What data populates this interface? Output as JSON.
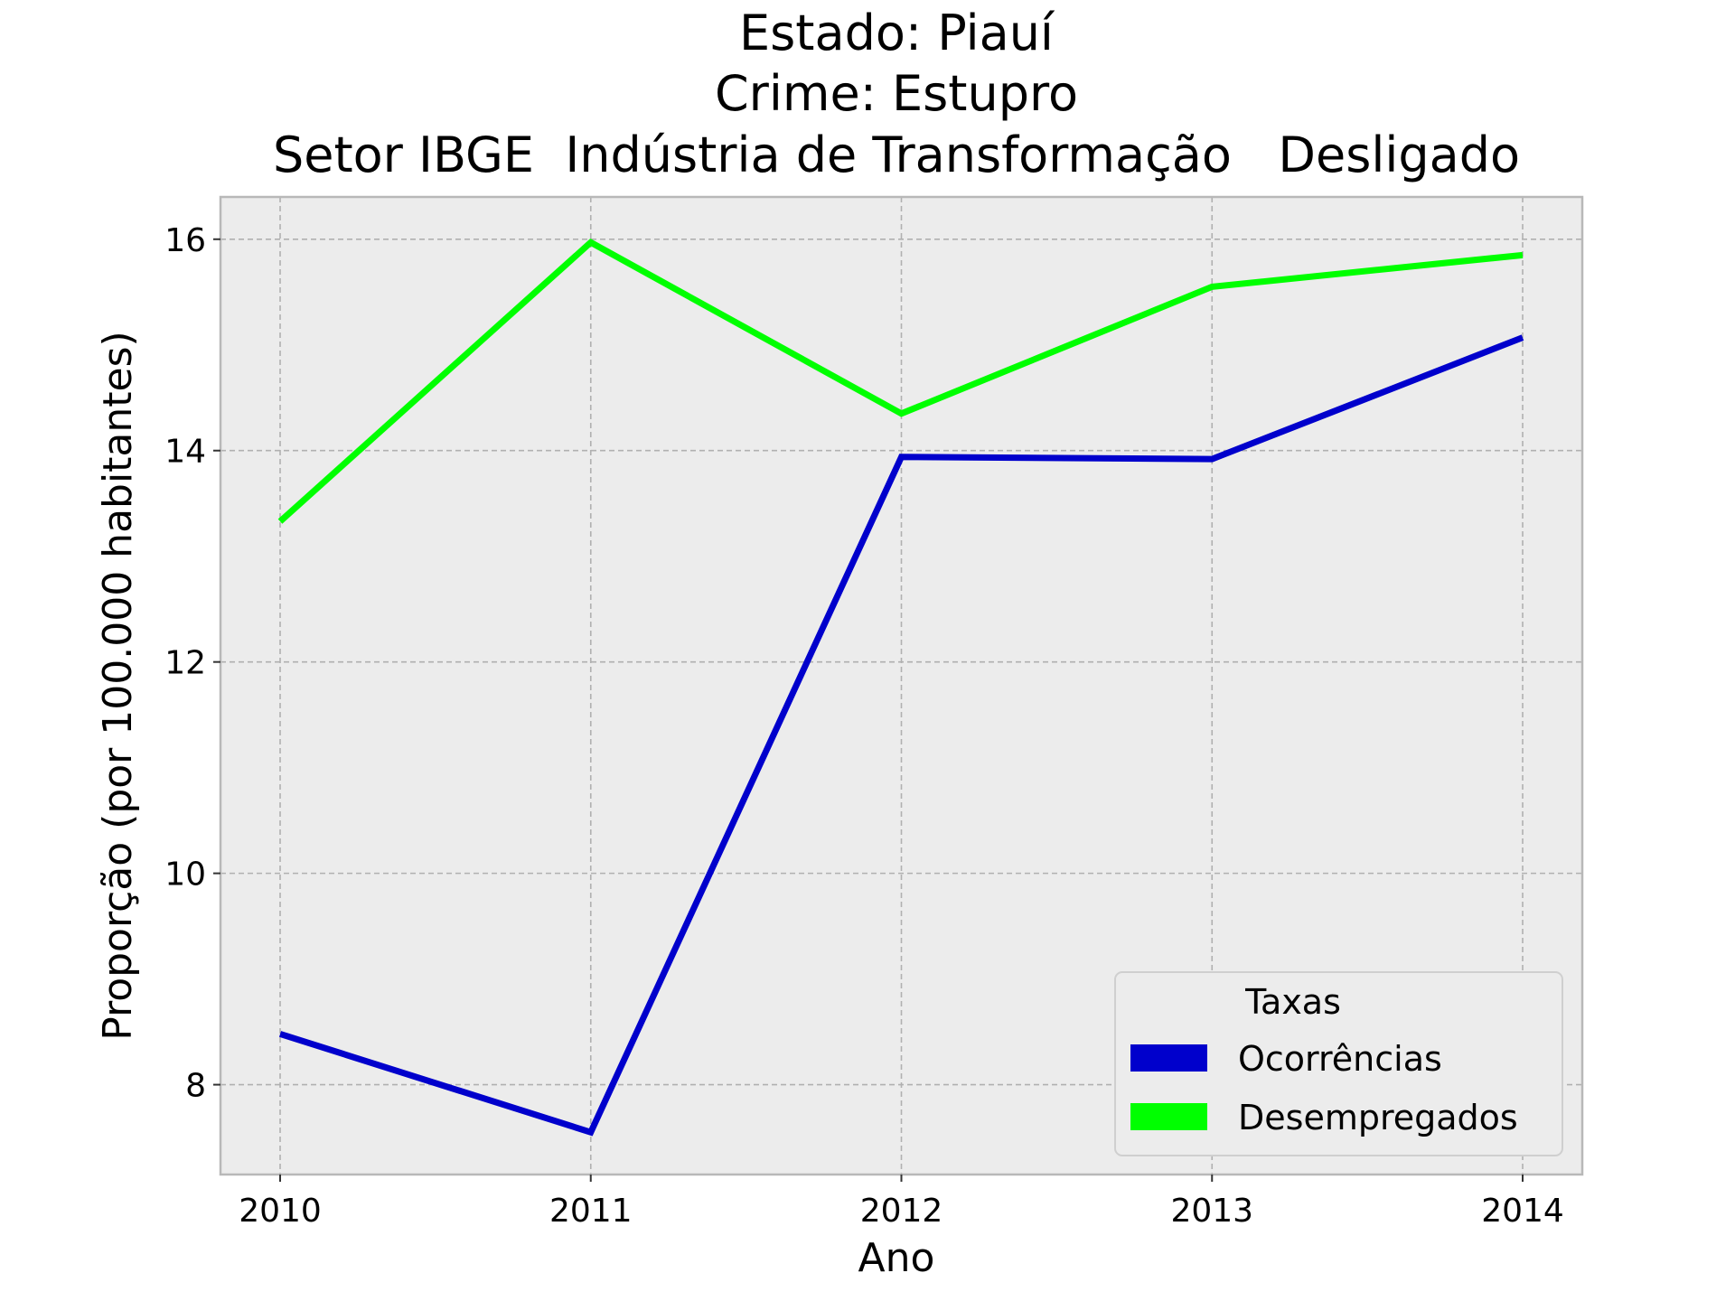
{
  "chart_data": {
    "type": "line",
    "title_lines": [
      "Estado: Piauí",
      "Crime: Estupro",
      "Setor IBGE  Indústria de Transformação   Desligado"
    ],
    "xlabel": "Ano",
    "ylabel": "Proporção (por 100.000 habitantes)",
    "categories": [
      "2010",
      "2011",
      "2012",
      "2013",
      "2014"
    ],
    "x_ticks": [
      "2010",
      "2011",
      "2012",
      "2013",
      "2014"
    ],
    "y_ticks": [
      8,
      10,
      12,
      14,
      16
    ],
    "ylim": [
      7.15,
      16.4
    ],
    "grid": true,
    "legend": {
      "title": "Taxas",
      "position": "bottom-right"
    },
    "series": [
      {
        "name": "Ocorrências",
        "color": "#0000cc",
        "values": [
          8.48,
          7.55,
          13.94,
          13.92,
          15.07
        ]
      },
      {
        "name": "Desempregados",
        "color": "#00ff00",
        "values": [
          13.33,
          15.97,
          14.35,
          15.55,
          15.85
        ]
      }
    ]
  },
  "colors": {
    "plot_background": "#ececec",
    "grid": "#b0b0b0",
    "axes_edge": "#b8b8b8"
  }
}
